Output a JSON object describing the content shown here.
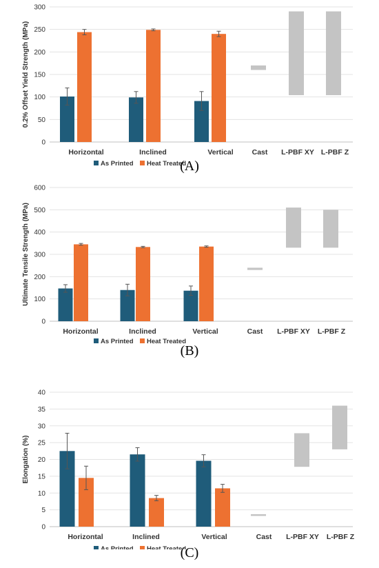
{
  "colors": {
    "as_printed": "#1F5C7A",
    "heat_treated": "#ED7131",
    "range": "#C4C4C4",
    "grid": "#E3E3E3"
  },
  "chart_data": [
    {
      "type": "bar",
      "panel_label": "(A)",
      "ylabel": "0.2% Offset Yield Strength (MPa)",
      "ylim": [
        0,
        300
      ],
      "yticks": [
        0,
        50,
        100,
        150,
        200,
        250,
        300
      ],
      "grid": true,
      "legend_position": "bottom",
      "categories": [
        "Horizontal",
        "Inclined",
        "Vertical",
        "Cast",
        "L-PBF XY",
        "L-PBF Z"
      ],
      "series": [
        {
          "name": "As Printed",
          "values": [
            101,
            99,
            91,
            null,
            null,
            null
          ],
          "errors": [
            19,
            13,
            21,
            null,
            null,
            null
          ]
        },
        {
          "name": "Heat Treated",
          "values": [
            244,
            249,
            240,
            null,
            null,
            null
          ],
          "errors": [
            6,
            2,
            6,
            null,
            null,
            null
          ]
        }
      ],
      "ranges": [
        null,
        null,
        null,
        [
          160,
          170
        ],
        [
          104,
          290
        ],
        [
          104,
          290
        ]
      ]
    },
    {
      "type": "bar",
      "panel_label": "(B)",
      "ylabel": "Ultimate Tensile Strength (MPa)",
      "ylim": [
        0,
        600
      ],
      "yticks": [
        0,
        100,
        200,
        300,
        400,
        500,
        600
      ],
      "grid": true,
      "legend_position": "bottom",
      "categories": [
        "Horizontal",
        "Inclined",
        "Vertical",
        "Cast",
        "L-PBF XY",
        "L-PBF Z"
      ],
      "series": [
        {
          "name": "As Printed",
          "values": [
            147,
            140,
            137,
            null,
            null,
            null
          ],
          "errors": [
            17,
            26,
            21,
            null,
            null,
            null
          ]
        },
        {
          "name": "Heat Treated",
          "values": [
            345,
            333,
            335,
            null,
            null,
            null
          ],
          "errors": [
            4,
            3,
            3,
            null,
            null,
            null
          ]
        }
      ],
      "ranges": [
        null,
        null,
        null,
        [
          230,
          240
        ],
        [
          330,
          510
        ],
        [
          330,
          500
        ]
      ]
    },
    {
      "type": "bar",
      "panel_label": "(C)",
      "ylabel": "Elongation (%)",
      "ylim": [
        0,
        40
      ],
      "yticks": [
        0,
        5,
        10,
        15,
        20,
        25,
        30,
        35,
        40
      ],
      "grid": true,
      "legend_position": "bottom",
      "categories": [
        "Horizontal",
        "Inclined",
        "Vertical",
        "Cast",
        "L-PBF XY",
        "L-PBF Z"
      ],
      "series": [
        {
          "name": "As Printed",
          "values": [
            22.5,
            21.5,
            19.6,
            null,
            null,
            null
          ],
          "errors": [
            5.3,
            2.0,
            1.8,
            null,
            null,
            null
          ]
        },
        {
          "name": "Heat Treated",
          "values": [
            14.5,
            8.5,
            11.4,
            null,
            null,
            null
          ],
          "errors": [
            3.5,
            0.8,
            1.2,
            null,
            null,
            null
          ]
        }
      ],
      "ranges": [
        null,
        null,
        null,
        [
          3.4,
          3.7
        ],
        [
          17.8,
          27.8
        ],
        [
          23,
          36
        ]
      ]
    }
  ]
}
